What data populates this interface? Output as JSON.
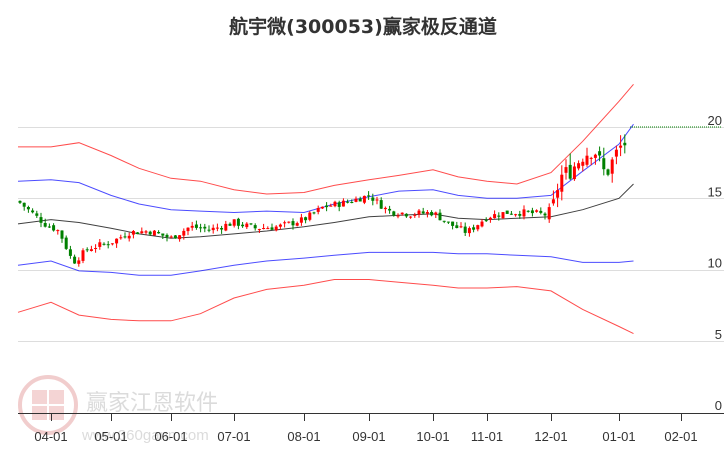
{
  "header": {
    "title": "航宇微(300053)赢家极反通道"
  },
  "watermark": {
    "logo_chars": [
      "江",
      "赢",
      "恩",
      "家"
    ],
    "brand": "赢家江恩软件",
    "url": "www.360gann.com"
  },
  "colors": {
    "up_candle": "#ff0000",
    "down_candle": "#008000",
    "outer_band": "#ff0000",
    "inner_band": "#0000ff",
    "middle_line": "#000000",
    "reference_line": "#008000",
    "grid": "#dddddd",
    "axis": "#333333"
  },
  "chart_data": {
    "type": "candlestick",
    "title": "航宇微(300053)赢家极反通道",
    "xlabel": "",
    "ylabel": "",
    "ylim": [
      0,
      22
    ],
    "y_ticks": [
      0,
      5,
      10,
      15,
      20
    ],
    "y_axis_position": "right",
    "grid": "horizontal",
    "x_ticks": [
      "04-01",
      "05-01",
      "06-01",
      "07-01",
      "08-01",
      "09-01",
      "10-01",
      "11-01",
      "12-01",
      "01-01",
      "02-01"
    ],
    "reference_line": {
      "value": 20.0,
      "style": "dotted",
      "color": "#008000",
      "from": "01-01",
      "to": "end"
    },
    "series": [
      {
        "name": "upper_outer_band",
        "color": "#ff0000",
        "x": [
          "03-20",
          "04-01",
          "04-15",
          "05-01",
          "05-15",
          "06-01",
          "06-15",
          "07-01",
          "07-15",
          "08-01",
          "08-15",
          "09-01",
          "09-15",
          "10-01",
          "10-15",
          "11-01",
          "11-15",
          "12-01",
          "12-15",
          "01-01",
          "01-08"
        ],
        "values": [
          18.6,
          18.6,
          18.9,
          18.0,
          17.1,
          16.4,
          16.2,
          15.6,
          15.3,
          15.4,
          15.9,
          16.3,
          16.6,
          17.0,
          16.5,
          16.2,
          16.0,
          16.8,
          19.0,
          21.8,
          23.0
        ]
      },
      {
        "name": "upper_inner_band",
        "color": "#0000ff",
        "x": [
          "03-20",
          "04-01",
          "04-15",
          "05-01",
          "05-15",
          "06-01",
          "06-15",
          "07-01",
          "07-15",
          "08-01",
          "08-15",
          "09-01",
          "09-15",
          "10-01",
          "10-15",
          "11-01",
          "11-15",
          "12-01",
          "12-15",
          "01-01",
          "01-08"
        ],
        "values": [
          16.2,
          16.3,
          16.1,
          15.2,
          14.6,
          14.2,
          14.1,
          14.0,
          14.1,
          14.0,
          14.6,
          15.1,
          15.5,
          15.6,
          15.2,
          15.0,
          15.0,
          15.2,
          16.9,
          18.8,
          20.2
        ]
      },
      {
        "name": "middle_line",
        "color": "#000000",
        "x": [
          "03-20",
          "04-01",
          "04-15",
          "05-01",
          "05-15",
          "06-01",
          "06-15",
          "07-01",
          "07-15",
          "08-01",
          "08-15",
          "09-01",
          "09-15",
          "10-01",
          "10-15",
          "11-01",
          "11-15",
          "12-01",
          "12-15",
          "01-01",
          "01-08"
        ],
        "values": [
          13.2,
          13.5,
          13.3,
          12.9,
          12.5,
          12.2,
          12.3,
          12.5,
          12.7,
          13.0,
          13.3,
          13.7,
          13.8,
          13.9,
          13.6,
          13.5,
          13.6,
          13.7,
          14.2,
          15.0,
          16.0
        ]
      },
      {
        "name": "lower_inner_band",
        "color": "#0000ff",
        "x": [
          "03-20",
          "04-01",
          "04-15",
          "05-01",
          "05-15",
          "06-01",
          "06-15",
          "07-01",
          "07-15",
          "08-01",
          "08-15",
          "09-01",
          "09-15",
          "10-01",
          "10-15",
          "11-01",
          "11-15",
          "12-01",
          "12-15",
          "01-01",
          "01-08"
        ],
        "values": [
          10.3,
          10.6,
          9.9,
          9.8,
          9.6,
          9.6,
          9.9,
          10.3,
          10.6,
          10.8,
          11.0,
          11.2,
          11.2,
          11.2,
          11.1,
          11.1,
          11.0,
          10.9,
          10.5,
          10.5,
          10.6
        ]
      },
      {
        "name": "lower_outer_band",
        "color": "#ff0000",
        "x": [
          "03-20",
          "04-01",
          "04-15",
          "05-01",
          "05-15",
          "06-01",
          "06-15",
          "07-01",
          "07-15",
          "08-01",
          "08-15",
          "09-01",
          "09-15",
          "10-01",
          "10-15",
          "11-01",
          "11-15",
          "12-01",
          "12-15",
          "01-01",
          "01-08"
        ],
        "values": [
          7.0,
          7.7,
          6.8,
          6.5,
          6.4,
          6.4,
          6.9,
          8.0,
          8.6,
          8.9,
          9.3,
          9.3,
          9.1,
          8.9,
          8.7,
          8.7,
          8.8,
          8.5,
          7.2,
          6.0,
          5.5
        ]
      },
      {
        "name": "price_close",
        "type": "candlestick",
        "x": [
          "03-20",
          "03-28",
          "04-05",
          "04-12",
          "04-20",
          "05-01",
          "05-10",
          "05-20",
          "06-01",
          "06-10",
          "06-20",
          "07-01",
          "07-10",
          "07-20",
          "08-01",
          "08-10",
          "08-20",
          "09-01",
          "09-10",
          "09-20",
          "10-01",
          "10-10",
          "10-20",
          "11-01",
          "11-10",
          "11-20",
          "12-01",
          "12-05",
          "12-10",
          "12-15",
          "12-20",
          "12-25",
          "01-01",
          "01-05",
          "01-08"
        ],
        "values": [
          14.8,
          13.2,
          12.7,
          10.5,
          11.5,
          11.9,
          12.6,
          12.7,
          12.2,
          13.0,
          12.8,
          13.3,
          12.9,
          13.0,
          13.5,
          14.4,
          14.7,
          15.2,
          14.1,
          13.9,
          14.0,
          13.2,
          12.6,
          13.7,
          14.0,
          14.0,
          13.8,
          16.5,
          17.0,
          18.0,
          18.5,
          16.6,
          18.5,
          19.0,
          20.0
        ]
      }
    ]
  }
}
